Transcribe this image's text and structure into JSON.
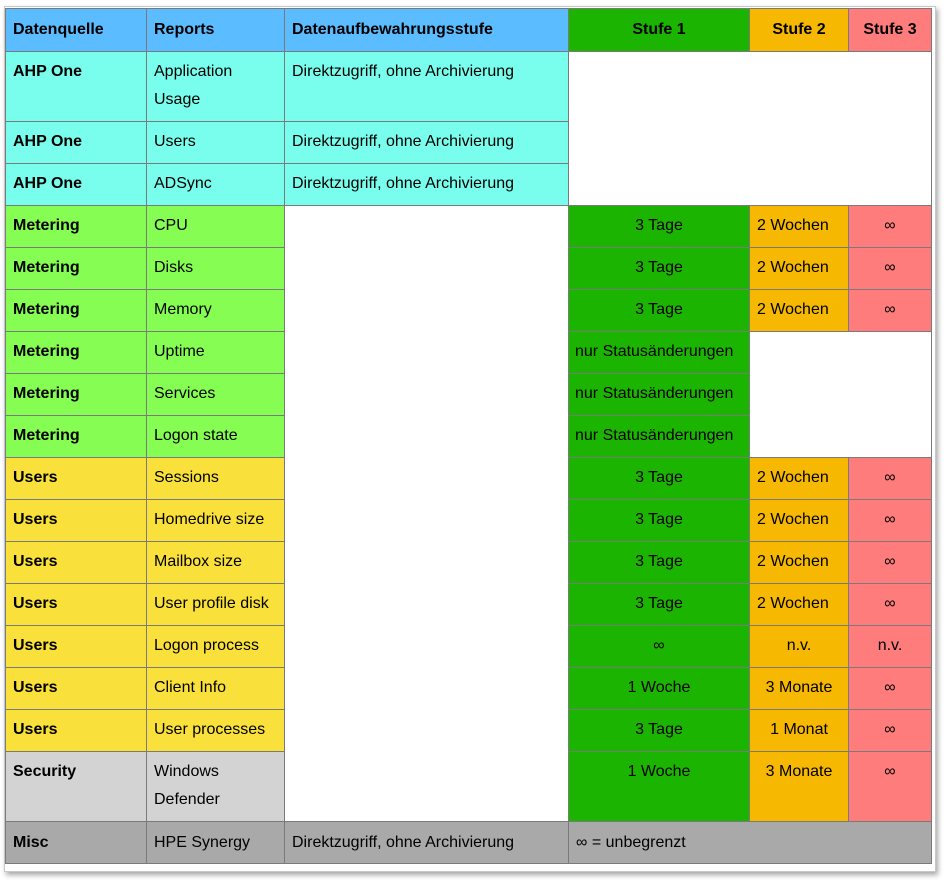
{
  "headers": {
    "source": "Datenquelle",
    "reports": "Reports",
    "retention": "Datenaufbewahrungsstufe",
    "level1": "Stufe 1",
    "level2": "Stufe 2",
    "level3": "Stufe 3"
  },
  "rows": [
    {
      "source": "AHP One",
      "report": "Application Usage",
      "retention": "Direktzugriff, ohne Archivierung"
    },
    {
      "source": "AHP One",
      "report": "Users",
      "retention": "Direktzugriff, ohne Archivierung"
    },
    {
      "source": "AHP One",
      "report": "ADSync",
      "retention": "Direktzugriff, ohne Archivierung"
    },
    {
      "source": "Metering",
      "report": "CPU",
      "s1": "3 Tage",
      "s2": "2 Wochen",
      "s3": "∞"
    },
    {
      "source": "Metering",
      "report": "Disks",
      "s1": "3 Tage",
      "s2": "2 Wochen",
      "s3": "∞"
    },
    {
      "source": "Metering",
      "report": "Memory",
      "s1": "3 Tage",
      "s2": "2 Wochen",
      "s3": "∞"
    },
    {
      "source": "Metering",
      "report": "Uptime",
      "s1": "nur Statusänderungen"
    },
    {
      "source": "Metering",
      "report": "Services",
      "s1": "nur Statusänderungen"
    },
    {
      "source": "Metering",
      "report": "Logon state",
      "s1": "nur Statusänderungen"
    },
    {
      "source": "Users",
      "report": "Sessions",
      "s1": "3 Tage",
      "s2": "2 Wochen",
      "s3": "∞"
    },
    {
      "source": "Users",
      "report": "Homedrive size",
      "s1": "3 Tage",
      "s2": "2 Wochen",
      "s3": "∞"
    },
    {
      "source": "Users",
      "report": "Mailbox size",
      "s1": "3 Tage",
      "s2": "2 Wochen",
      "s3": "∞"
    },
    {
      "source": "Users",
      "report": "User profile disk",
      "s1": "3 Tage",
      "s2": "2 Wochen",
      "s3": "∞"
    },
    {
      "source": "Users",
      "report": "Logon process",
      "s1": "∞",
      "s2": "n.v.",
      "s3": "n.v."
    },
    {
      "source": "Users",
      "report": "Client Info",
      "s1": "1 Woche",
      "s2": "3 Monate",
      "s3": "∞"
    },
    {
      "source": "Users",
      "report": "User processes",
      "s1": "3 Tage",
      "s2": "1 Monat",
      "s3": "∞"
    },
    {
      "source": "Security",
      "report": "Windows Defender",
      "s1": "1 Woche",
      "s2": "3 Monate",
      "s3": "∞"
    },
    {
      "source": "Misc",
      "report": "HPE Synergy",
      "retention": "Direktzugriff, ohne Archivierung",
      "note": "∞ = unbegrenzt"
    }
  ],
  "colors": {
    "header_blue": "#5bbcff",
    "level1_green": "#1bb400",
    "level2_orange": "#f6b800",
    "level3_red": "#ff7c7c",
    "ahp_cyan": "#79fdec",
    "metering_lime": "#85fd52",
    "users_yellow": "#fae03a",
    "security_lightgray": "#d3d3d3",
    "misc_gray": "#a9a9a9"
  }
}
